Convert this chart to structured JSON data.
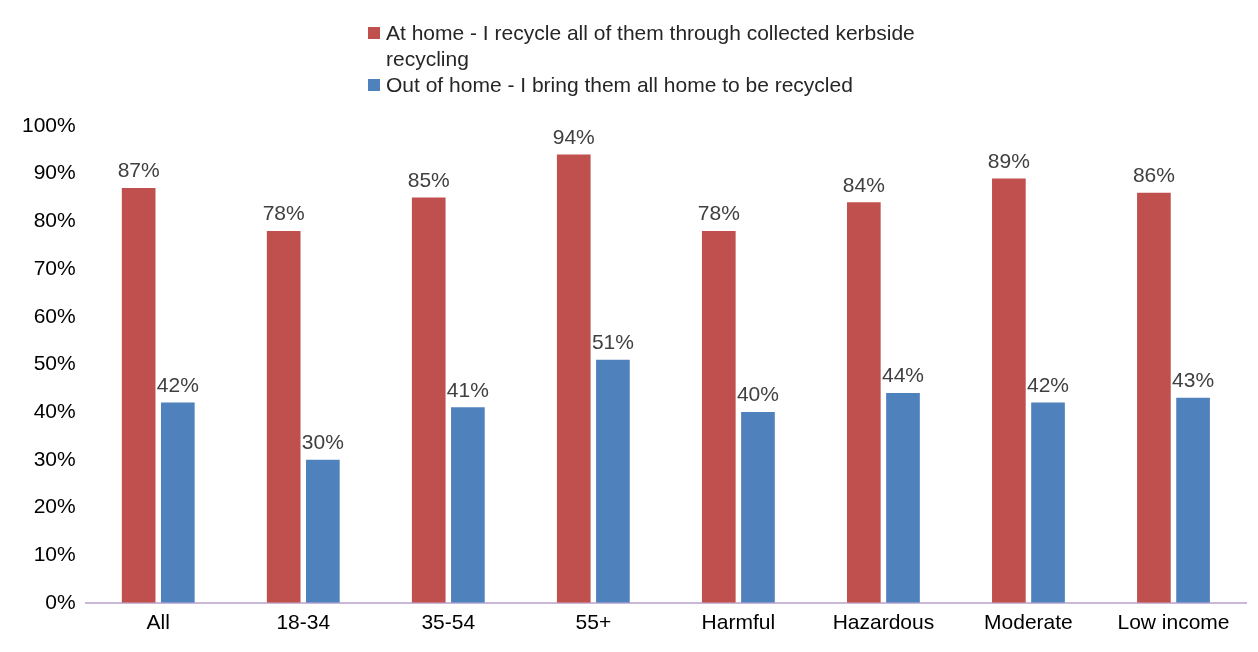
{
  "chart_data": {
    "type": "bar",
    "categories": [
      "All",
      "18-34",
      "35-54",
      "55+",
      "Harmful",
      "Hazardous",
      "Moderate",
      "Low income"
    ],
    "series": [
      {
        "name": "At home - I recycle all of them through collected kerbside recycling",
        "color": "#c0504d",
        "values": [
          87,
          78,
          85,
          94,
          78,
          84,
          89,
          86
        ]
      },
      {
        "name": "Out of home - I bring them all home to be recycled",
        "color": "#4f81bd",
        "values": [
          42,
          30,
          41,
          51,
          40,
          44,
          42,
          43
        ]
      }
    ],
    "ylim": [
      0,
      100
    ],
    "yticks": [
      {
        "value": 0,
        "label": "0%"
      },
      {
        "value": 10,
        "label": "10%"
      },
      {
        "value": 20,
        "label": "20%"
      },
      {
        "value": 30,
        "label": "30%"
      },
      {
        "value": 40,
        "label": "40%"
      },
      {
        "value": 50,
        "label": "50%"
      },
      {
        "value": 60,
        "label": "60%"
      },
      {
        "value": 70,
        "label": "70%"
      },
      {
        "value": 80,
        "label": "80%"
      },
      {
        "value": 90,
        "label": "90%"
      },
      {
        "value": 100,
        "label": "100%"
      }
    ],
    "value_labels": [
      [
        "87%",
        "78%",
        "85%",
        "94%",
        "78%",
        "84%",
        "89%",
        "86%"
      ],
      [
        "42%",
        "30%",
        "41%",
        "51%",
        "40%",
        "44%",
        "42%",
        "43%"
      ]
    ],
    "grid": false,
    "legend": "top"
  }
}
